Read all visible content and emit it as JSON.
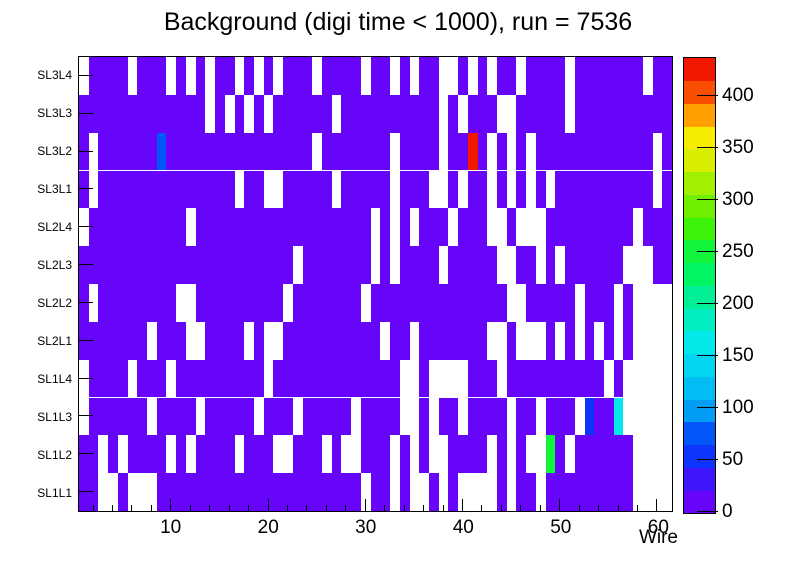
{
  "title": "Background (digi time < 1000), run = 7536",
  "x_axis": {
    "label": "Wire",
    "major_ticks": [
      10,
      20,
      30,
      40,
      50,
      60
    ],
    "minor_tick_step": 2,
    "wire_min": 1,
    "wire_max": 61
  },
  "palette_bar": {
    "zmin": 0,
    "zmax": 438,
    "tick_values": [
      0,
      50,
      100,
      150,
      200,
      250,
      300,
      350,
      400
    ],
    "colors_bottom_to_top": [
      "#6605f9",
      "#3f15fb",
      "#0d35fd",
      "#0356fa",
      "#029df5",
      "#01bdf3",
      "#02d5f0",
      "#03e9e9",
      "#02edc2",
      "#01f096",
      "#00f464",
      "#12f53a",
      "#3df309",
      "#6fee00",
      "#a0f000",
      "#d8ee00",
      "#f5ec00",
      "#ff9f00",
      "#fa4e00",
      "#f21800"
    ]
  },
  "colors": {
    "base_cell": "#6605f9",
    "empty_cell": "#ffffff",
    "frame": "#000000",
    "background": "#ffffff"
  },
  "chart_data": {
    "type": "heatmap",
    "title": "Background (digi time < 1000), run = 7536",
    "xlabel": "Wire",
    "x_range": [
      1,
      61
    ],
    "zmin": 0,
    "zmax": 438,
    "legend_position": "right-colorbar",
    "default_filled_value": 10,
    "rows_top_to_bottom": [
      {
        "name": "SL3L4",
        "empty_wires": [
          1,
          6,
          10,
          12,
          14,
          17,
          19,
          21,
          25,
          30,
          33,
          35,
          38,
          39,
          41,
          43,
          46,
          51,
          59
        ],
        "cells": {}
      },
      {
        "name": "SL3L3",
        "empty_wires": [
          14,
          16,
          18,
          20,
          27,
          38,
          40,
          44,
          45,
          51
        ],
        "cells": {}
      },
      {
        "name": "SL3L2",
        "empty_wires": [
          2,
          25,
          33,
          38,
          43,
          45,
          47,
          60
        ],
        "cells": {
          "9": 75,
          "41": 430
        }
      },
      {
        "name": "SL3L1",
        "empty_wires": [
          2,
          17,
          20,
          21,
          27,
          33,
          37,
          38,
          40,
          43,
          45,
          47,
          49,
          60
        ],
        "cells": {}
      },
      {
        "name": "SL2L4",
        "empty_wires": [
          1,
          12,
          31,
          33,
          35,
          39,
          43,
          44,
          46,
          47,
          48,
          58
        ],
        "cells": {}
      },
      {
        "name": "SL2L3",
        "empty_wires": [
          23,
          31,
          33,
          38,
          44,
          45,
          48,
          50,
          57,
          58,
          59
        ],
        "cells": {}
      },
      {
        "name": "SL2L2",
        "empty_wires": [
          2,
          11,
          12,
          22,
          30,
          45,
          46,
          52,
          56,
          58,
          59,
          60,
          61
        ],
        "cells": {}
      },
      {
        "name": "SL2L1",
        "empty_wires": [
          8,
          12,
          13,
          18,
          20,
          21,
          32,
          35,
          43,
          44,
          46,
          47,
          48,
          50,
          52,
          54,
          56,
          58,
          59,
          60,
          61
        ],
        "cells": {}
      },
      {
        "name": "SL1L4",
        "empty_wires": [
          1,
          6,
          10,
          20,
          34,
          35,
          37,
          38,
          39,
          40,
          44,
          55,
          57,
          58,
          59,
          60,
          61
        ],
        "cells": {}
      },
      {
        "name": "SL1L3",
        "empty_wires": [
          1,
          8,
          13,
          19,
          23,
          29,
          34,
          35,
          37,
          40,
          45,
          48,
          52,
          57,
          58,
          59,
          60,
          61
        ],
        "cells": {
          "53": 55,
          "56": 155
        }
      },
      {
        "name": "SL1L2",
        "empty_wires": [
          3,
          5,
          10,
          12,
          17,
          21,
          22,
          26,
          28,
          29,
          33,
          35,
          37,
          38,
          43,
          45,
          47,
          48,
          51,
          58,
          59,
          60,
          61
        ],
        "cells": {
          "49": 255
        }
      },
      {
        "name": "SL1L1",
        "empty_wires": [
          3,
          4,
          6,
          7,
          8,
          30,
          33,
          35,
          36,
          38,
          40,
          41,
          42,
          43,
          45,
          48,
          58,
          59,
          60,
          61
        ],
        "cells": {}
      }
    ],
    "notable_cells": [
      {
        "row": "SL3L2",
        "wire": 9,
        "approx_value": 75,
        "color": "blue"
      },
      {
        "row": "SL3L2",
        "wire": 41,
        "approx_value": 430,
        "color": "red"
      },
      {
        "row": "SL1L3",
        "wire": 53,
        "approx_value": 55,
        "color": "dark-blue"
      },
      {
        "row": "SL1L3",
        "wire": 56,
        "approx_value": 155,
        "color": "cyan"
      },
      {
        "row": "SL1L2",
        "wire": 49,
        "approx_value": 255,
        "color": "green"
      }
    ]
  }
}
